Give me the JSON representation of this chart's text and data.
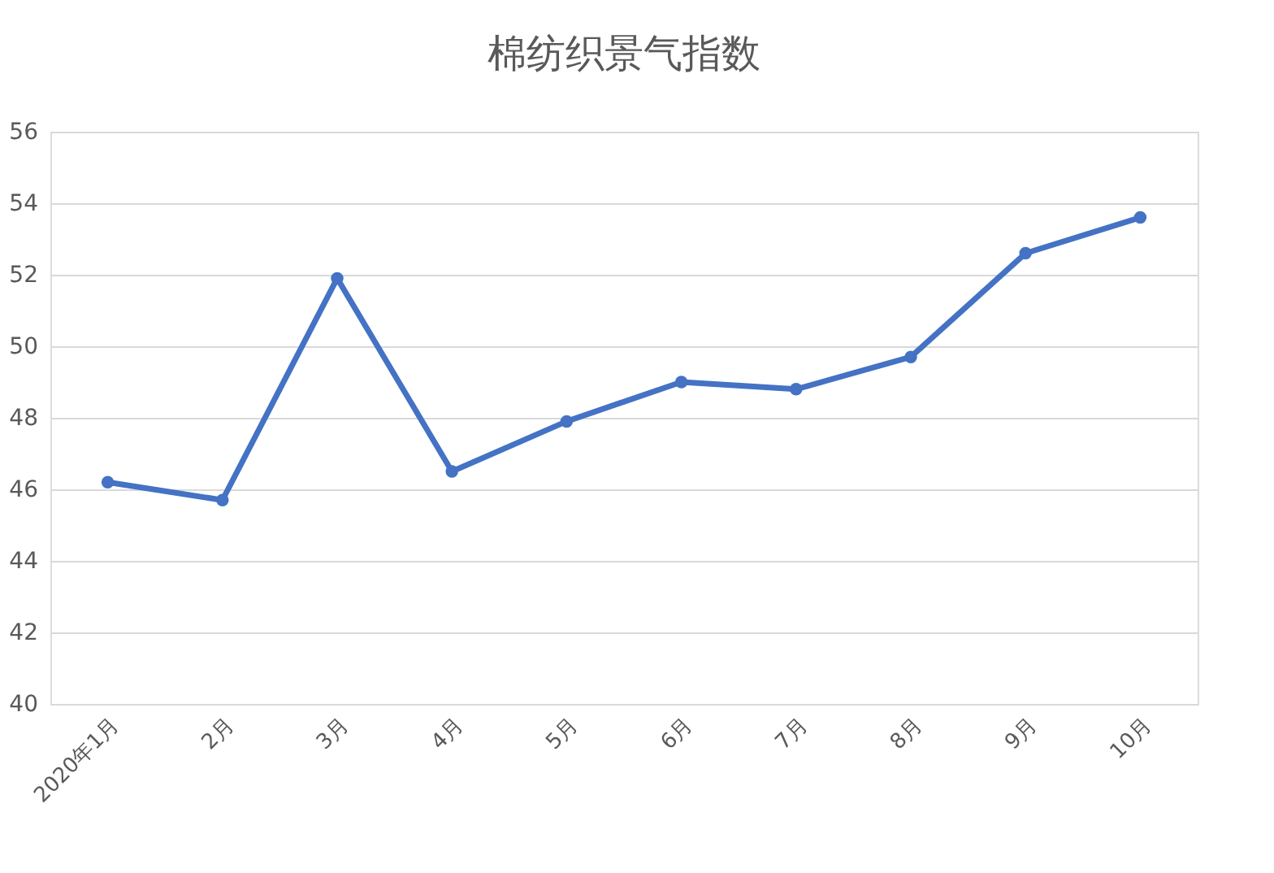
{
  "chart_data": {
    "type": "line",
    "title": "棉纺织景气指数",
    "categories": [
      "2020年1月",
      "2月",
      "3月",
      "4月",
      "5月",
      "6月",
      "7月",
      "8月",
      "9月",
      "10月"
    ],
    "series": [
      {
        "color": "#4472c4",
        "values": [
          46.2,
          45.7,
          51.9,
          46.5,
          47.9,
          49.0,
          48.8,
          49.7,
          52.6,
          53.6
        ]
      }
    ],
    "ylim": [
      40,
      56
    ],
    "yticks": [
      40,
      42,
      44,
      46,
      48,
      50,
      52,
      54,
      56
    ],
    "grid": "y",
    "marker": "circle",
    "line_style": "solid",
    "legend": false
  }
}
